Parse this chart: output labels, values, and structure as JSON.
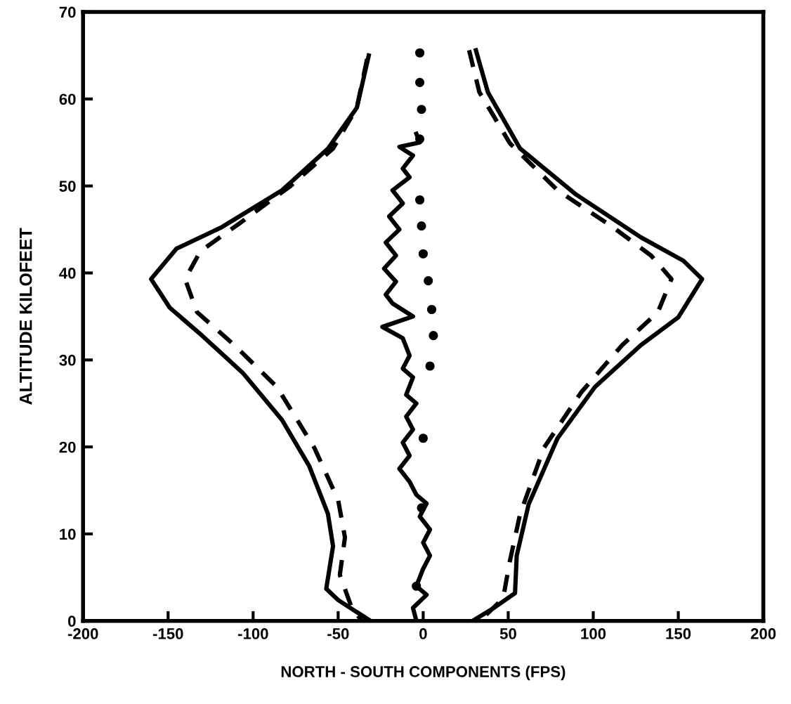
{
  "chart_data": {
    "type": "line",
    "xlabel": "NORTH - SOUTH COMPONENTS (FPS)",
    "ylabel": "ALTITUDE KILOFEET",
    "xlim": [
      -200,
      200
    ],
    "xticks": [
      -200,
      -150,
      -100,
      -50,
      0,
      50,
      100,
      150,
      200
    ],
    "ylim": [
      0,
      70
    ],
    "yticks": [
      0,
      10,
      20,
      30,
      40,
      50,
      60,
      70
    ],
    "grid": false,
    "legend": false,
    "series": [
      {
        "color": "#000000",
        "line_style": "solid",
        "x": [
          -32,
          -39,
          -56,
          -83,
          -119,
          -145,
          -160,
          -149,
          -130,
          -106,
          -83,
          -67,
          -56,
          -53,
          -57,
          -50,
          -31
        ],
        "values": [
          65,
          59,
          54.3,
          49.5,
          45.2,
          42.8,
          39.3,
          36,
          32.8,
          28.5,
          23.1,
          17.8,
          12.3,
          8.6,
          3.7,
          2.4,
          0
        ]
      },
      {
        "color": "#000000",
        "line_style": "dashed",
        "x": [
          -33,
          -39,
          -53,
          -78,
          -108,
          -131,
          -140,
          -133,
          -111,
          -86,
          -64,
          -50,
          -46,
          -49,
          -42,
          -36
        ],
        "values": [
          64.6,
          59,
          54.3,
          50,
          45.7,
          42.5,
          39.3,
          35.5,
          31.7,
          26.9,
          19.9,
          13.9,
          9.6,
          5.3,
          1.5,
          0
        ]
      },
      {
        "color": "#000000",
        "line_style": "solid",
        "x": [
          31,
          38,
          57,
          90,
          128,
          153,
          164,
          150,
          128,
          101,
          79,
          62,
          55,
          54,
          40,
          29
        ],
        "values": [
          65.6,
          60.8,
          54.3,
          49,
          44.1,
          41.4,
          39.3,
          34.9,
          31.7,
          26.9,
          21,
          13.4,
          7.5,
          3.2,
          1.3,
          0
        ]
      },
      {
        "color": "#000000",
        "line_style": "dashed",
        "x": [
          27,
          33,
          51,
          79,
          112,
          134,
          146,
          138,
          117,
          93,
          71,
          57,
          51,
          47,
          36
        ],
        "values": [
          65.6,
          60.8,
          54.9,
          49.5,
          45.2,
          42,
          39.3,
          35.5,
          31.7,
          26.3,
          19.9,
          12.3,
          6.9,
          2.6,
          0.5
        ]
      },
      {
        "type": "scatter",
        "color": "#000000",
        "marker": "circle",
        "x": [
          -2,
          -2,
          -1,
          -2,
          -2,
          -1,
          0,
          3,
          5,
          6,
          4,
          0,
          -1,
          -4
        ],
        "values": [
          65.3,
          61.9,
          58.8,
          55.4,
          48.4,
          45.4,
          42.2,
          39.1,
          35.8,
          32.8,
          29.3,
          21,
          13,
          4
        ]
      },
      {
        "color": "#000000",
        "line_style": "solid",
        "x": [
          -4,
          -2,
          -14,
          -6,
          -12,
          -8,
          -18,
          -12,
          -20,
          -14,
          -22,
          -16,
          -23,
          -16,
          -22,
          -18,
          -6,
          -24,
          -12,
          -8,
          -12,
          -6,
          -10,
          -4,
          -10,
          -6,
          -12,
          -8,
          -14,
          -8,
          -4,
          2,
          -2,
          4,
          0,
          4,
          0,
          -4,
          2,
          -6,
          -4
        ],
        "values": [
          56,
          55,
          54.5,
          53.5,
          52,
          51,
          49.5,
          48,
          46.5,
          45,
          43.5,
          42,
          40.5,
          39,
          37.5,
          36.5,
          35,
          33.8,
          32.5,
          30.5,
          29,
          28,
          26,
          25,
          23.5,
          22,
          20.5,
          19,
          17.5,
          16,
          14.5,
          13.5,
          12,
          10.5,
          9,
          7.5,
          6,
          4,
          3,
          1.5,
          0
        ]
      }
    ]
  }
}
